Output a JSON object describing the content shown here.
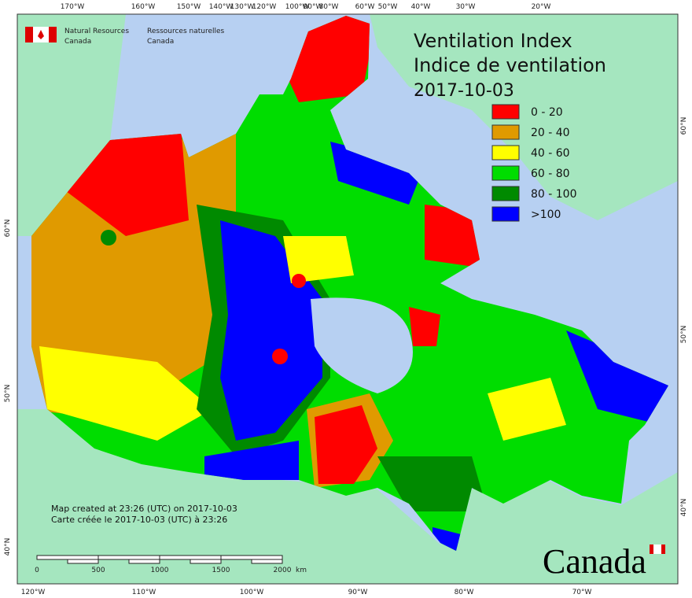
{
  "header": {
    "agency_en": [
      "Natural Resources",
      "Canada"
    ],
    "agency_fr": [
      "Ressources naturelles",
      "Canada"
    ]
  },
  "title": [
    "Ventilation Index",
    "Indice de ventilation",
    "2017-10-03"
  ],
  "legend": [
    {
      "label": "0 - 20",
      "color": "#ff0000"
    },
    {
      "label": "20 - 40",
      "color": "#e09a00"
    },
    {
      "label": "40 - 60",
      "color": "#ffff00"
    },
    {
      "label": "60 - 80",
      "color": "#00dd00"
    },
    {
      "label": "80 - 100",
      "color": "#008a00"
    },
    {
      "label": ">100",
      "color": "#0000ff"
    }
  ],
  "graticule": {
    "top": [
      "170°W",
      "160°W",
      "150°W",
      "140°W",
      "130°W",
      "120°W",
      "100°W",
      "90°W",
      "80°W",
      "60°W",
      "50°W",
      "40°W",
      "30°W",
      "20°W"
    ],
    "bottom": [
      "120°W",
      "110°W",
      "100°W",
      "90°W",
      "80°W",
      "70°W"
    ],
    "left": [
      "60°N",
      "50°N",
      "40°N"
    ],
    "right": [
      "60°N",
      "50°N",
      "40°N"
    ]
  },
  "notes": [
    "Map created at 23:26 (UTC) on 2017-10-03",
    "Carte créée le 2017-10-03 (UTC) à 23:26"
  ],
  "scale_bar": {
    "labels": [
      "0",
      "500",
      "1000",
      "1500",
      "2000"
    ],
    "unit": "km"
  },
  "wordmark": "Canada"
}
